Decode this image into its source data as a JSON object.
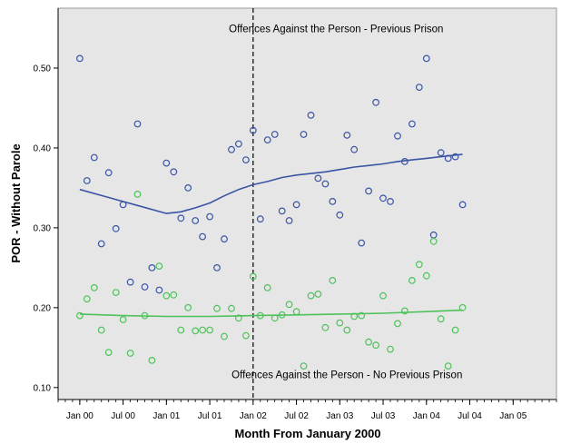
{
  "chart_data": {
    "type": "scatter",
    "xlabel": "Month From January 2000",
    "ylabel": "POR - Without Parole",
    "xlim": [
      -3,
      66
    ],
    "ylim": [
      0.085,
      0.575
    ],
    "x_ticks": [
      {
        "v": 0,
        "label": "Jan 00"
      },
      {
        "v": 6,
        "label": "Jul 00"
      },
      {
        "v": 12,
        "label": "Jan 01"
      },
      {
        "v": 18,
        "label": "Jul 01"
      },
      {
        "v": 24,
        "label": "Jan 02"
      },
      {
        "v": 30,
        "label": "Jul 02"
      },
      {
        "v": 36,
        "label": "Jan 03"
      },
      {
        "v": 42,
        "label": "Jul 03"
      },
      {
        "v": 48,
        "label": "Jan 04"
      },
      {
        "v": 54,
        "label": "Jul 04"
      },
      {
        "v": 60,
        "label": "Jan 05"
      }
    ],
    "y_ticks": [
      {
        "v": 0.1,
        "label": "0.10"
      },
      {
        "v": 0.2,
        "label": "0.20"
      },
      {
        "v": 0.3,
        "label": "0.30"
      },
      {
        "v": 0.4,
        "label": "0.40"
      },
      {
        "v": 0.5,
        "label": "0.50"
      }
    ],
    "reference_line_x": 24,
    "annotations": [
      {
        "text": "Offences Against the Person - Previous Prison",
        "x": 35.5,
        "y": 0.545
      },
      {
        "text": "Offences Against the Person - No Previous Prison",
        "x": 37,
        "y": 0.112
      }
    ],
    "grid": false,
    "background": "#e6e6e6",
    "series": [
      {
        "color": "#3a54a4",
        "x": [
          0,
          1,
          2,
          3,
          4,
          5,
          6,
          7,
          8,
          9,
          10,
          11,
          12,
          13,
          14,
          15,
          16,
          17,
          18,
          19,
          20,
          21,
          22,
          23,
          24,
          25,
          26,
          27,
          28,
          29,
          30,
          31,
          32,
          33,
          34,
          35,
          36,
          37,
          38,
          39,
          40,
          41,
          42,
          43,
          44,
          45,
          46,
          47,
          48,
          49,
          50,
          51,
          52,
          53
        ],
        "y": [
          0.512,
          0.359,
          0.388,
          0.28,
          0.369,
          0.299,
          0.329,
          0.232,
          0.43,
          0.226,
          0.25,
          0.222,
          0.381,
          0.37,
          0.312,
          0.35,
          0.309,
          0.289,
          0.314,
          0.25,
          0.286,
          0.398,
          0.405,
          0.385,
          0.422,
          0.311,
          0.41,
          0.417,
          0.321,
          0.309,
          0.329,
          0.417,
          0.441,
          0.362,
          0.355,
          0.333,
          0.316,
          0.416,
          0.398,
          0.281,
          0.346,
          0.457,
          0.337,
          0.333,
          0.415,
          0.383,
          0.43,
          0.476,
          0.512,
          0.291,
          0.394,
          0.387,
          0.389,
          0.329
        ],
        "trend_x": [
          0,
          4,
          8,
          12,
          14,
          16,
          18,
          20,
          22,
          24,
          26,
          28,
          30,
          32,
          34,
          36,
          38,
          40,
          42,
          44,
          46,
          48,
          50,
          52,
          53
        ],
        "trend_y": [
          0.348,
          0.338,
          0.328,
          0.318,
          0.32,
          0.325,
          0.331,
          0.34,
          0.348,
          0.354,
          0.358,
          0.363,
          0.366,
          0.368,
          0.37,
          0.373,
          0.376,
          0.378,
          0.38,
          0.383,
          0.385,
          0.387,
          0.389,
          0.391,
          0.392
        ]
      },
      {
        "color": "#4ec25a",
        "x": [
          0,
          1,
          2,
          3,
          4,
          5,
          6,
          7,
          8,
          9,
          10,
          11,
          12,
          13,
          14,
          15,
          16,
          17,
          18,
          19,
          20,
          21,
          22,
          23,
          24,
          25,
          26,
          27,
          28,
          29,
          30,
          31,
          32,
          33,
          34,
          35,
          36,
          37,
          38,
          39,
          40,
          41,
          42,
          43,
          44,
          45,
          46,
          47,
          48,
          49,
          50,
          51,
          52,
          53
        ],
        "y": [
          0.19,
          0.211,
          0.225,
          0.172,
          0.144,
          0.219,
          0.185,
          0.143,
          0.342,
          0.19,
          0.134,
          0.252,
          0.215,
          0.216,
          0.172,
          0.2,
          0.171,
          0.172,
          0.172,
          0.199,
          0.164,
          0.199,
          0.187,
          0.165,
          0.239,
          0.19,
          0.225,
          0.187,
          0.191,
          0.204,
          0.195,
          0.127,
          0.215,
          0.217,
          0.175,
          0.234,
          0.181,
          0.172,
          0.189,
          0.19,
          0.157,
          0.153,
          0.215,
          0.148,
          0.18,
          0.196,
          0.234,
          0.254,
          0.24,
          0.283,
          0.186,
          0.127,
          0.172,
          0.2
        ],
        "trend_x": [
          0,
          6,
          12,
          18,
          24,
          30,
          36,
          42,
          48,
          53
        ],
        "trend_y": [
          0.192,
          0.19,
          0.189,
          0.189,
          0.19,
          0.191,
          0.192,
          0.193,
          0.195,
          0.197
        ]
      }
    ]
  }
}
